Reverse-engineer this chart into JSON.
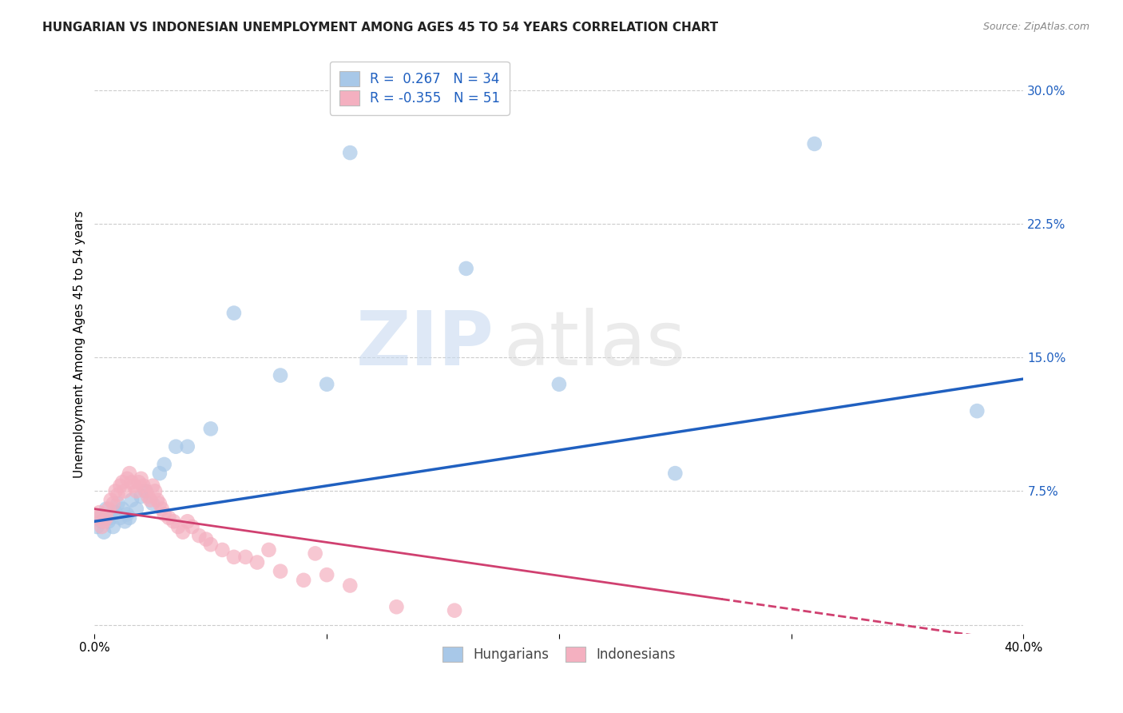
{
  "title": "HUNGARIAN VS INDONESIAN UNEMPLOYMENT AMONG AGES 45 TO 54 YEARS CORRELATION CHART",
  "source": "Source: ZipAtlas.com",
  "ylabel": "Unemployment Among Ages 45 to 54 years",
  "xlim": [
    0.0,
    0.4
  ],
  "ylim": [
    -0.005,
    0.32
  ],
  "yticks": [
    0.0,
    0.075,
    0.15,
    0.225,
    0.3
  ],
  "ytick_labels": [
    "",
    "7.5%",
    "15.0%",
    "22.5%",
    "30.0%"
  ],
  "hungarian_color": "#a8c8e8",
  "indonesian_color": "#f4b0c0",
  "hungarian_line_color": "#2060c0",
  "indonesian_line_color": "#d04070",
  "legend_R_hungarian": "0.267",
  "legend_N_hungarian": "34",
  "legend_R_indonesian": "-0.355",
  "legend_N_indonesian": "51",
  "hun_line_x0": 0.0,
  "hun_line_y0": 0.058,
  "hun_line_x1": 0.4,
  "hun_line_y1": 0.138,
  "ind_line_x0": 0.0,
  "ind_line_y0": 0.065,
  "ind_line_x1": 0.4,
  "ind_line_y1": -0.01,
  "hungarian_x": [
    0.001,
    0.002,
    0.003,
    0.004,
    0.005,
    0.006,
    0.007,
    0.008,
    0.009,
    0.01,
    0.011,
    0.012,
    0.013,
    0.014,
    0.015,
    0.016,
    0.018,
    0.02,
    0.022,
    0.025,
    0.028,
    0.03,
    0.035,
    0.04,
    0.05,
    0.06,
    0.08,
    0.1,
    0.11,
    0.16,
    0.2,
    0.25,
    0.31,
    0.38
  ],
  "hungarian_y": [
    0.055,
    0.06,
    0.058,
    0.052,
    0.065,
    0.058,
    0.06,
    0.055,
    0.063,
    0.068,
    0.06,
    0.065,
    0.058,
    0.062,
    0.06,
    0.07,
    0.065,
    0.072,
    0.075,
    0.068,
    0.085,
    0.09,
    0.1,
    0.1,
    0.11,
    0.175,
    0.14,
    0.135,
    0.265,
    0.2,
    0.135,
    0.085,
    0.27,
    0.12
  ],
  "indonesian_x": [
    0.001,
    0.002,
    0.003,
    0.004,
    0.005,
    0.006,
    0.007,
    0.008,
    0.009,
    0.01,
    0.011,
    0.012,
    0.013,
    0.014,
    0.015,
    0.016,
    0.017,
    0.018,
    0.019,
    0.02,
    0.021,
    0.022,
    0.023,
    0.024,
    0.025,
    0.026,
    0.027,
    0.028,
    0.029,
    0.03,
    0.032,
    0.034,
    0.036,
    0.038,
    0.04,
    0.042,
    0.045,
    0.048,
    0.05,
    0.055,
    0.06,
    0.065,
    0.07,
    0.075,
    0.08,
    0.09,
    0.095,
    0.1,
    0.11,
    0.13,
    0.155
  ],
  "indonesian_y": [
    0.06,
    0.063,
    0.055,
    0.058,
    0.06,
    0.065,
    0.07,
    0.068,
    0.075,
    0.073,
    0.078,
    0.08,
    0.075,
    0.082,
    0.085,
    0.08,
    0.078,
    0.075,
    0.08,
    0.082,
    0.078,
    0.075,
    0.072,
    0.07,
    0.078,
    0.075,
    0.07,
    0.068,
    0.065,
    0.062,
    0.06,
    0.058,
    0.055,
    0.052,
    0.058,
    0.055,
    0.05,
    0.048,
    0.045,
    0.042,
    0.038,
    0.038,
    0.035,
    0.042,
    0.03,
    0.025,
    0.04,
    0.028,
    0.022,
    0.01,
    0.008
  ],
  "watermark_zip": "ZIP",
  "watermark_atlas": "atlas",
  "background_color": "#ffffff",
  "grid_color": "#cccccc",
  "title_fontsize": 11,
  "axis_label_fontsize": 11,
  "tick_fontsize": 11,
  "legend_fontsize": 12
}
